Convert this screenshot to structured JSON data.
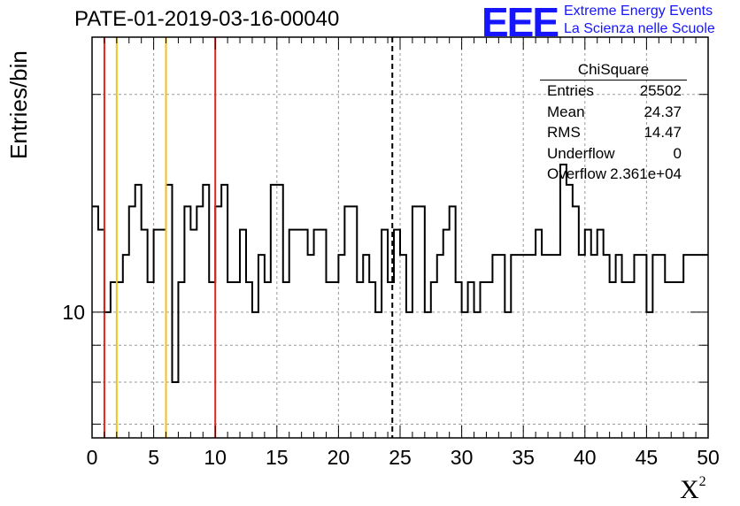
{
  "header": {
    "title": "PATE-01-2019-03-16-00040",
    "logo_text": "EEE",
    "logo_line1": "Extreme Energy Events",
    "logo_line2": "La Scienza nelle Scuole"
  },
  "stats_box": {
    "title": "ChiSquare",
    "rows": [
      {
        "label": "Entries",
        "value": "25502"
      },
      {
        "label": "Mean",
        "value": "24.37"
      },
      {
        "label": "RMS",
        "value": "14.47"
      },
      {
        "label": "Underflow",
        "value": "0"
      },
      {
        "label": "Overflow",
        "value": "2.361e+04"
      }
    ]
  },
  "colors": {
    "red_line": "#e8221a",
    "yellow_line": "#f2c21a",
    "histogram": "#000000",
    "grid": "#9a9a9a",
    "logo": "#1515ff"
  },
  "chart_data": {
    "type": "histogram",
    "title": "PATE-01-2019-03-16-00040",
    "xlabel": "X",
    "xlabel_superscript": "2",
    "ylabel": "Entries/bin",
    "xlim": [
      0,
      50
    ],
    "ylim": [
      6.7,
      24
    ],
    "yscale": "log",
    "grid": true,
    "xticks": [
      0,
      5,
      10,
      15,
      20,
      25,
      30,
      35,
      40,
      45,
      50
    ],
    "yticks": [
      10
    ],
    "bin_width": 0.5,
    "bin_start": 0,
    "values": [
      14,
      13,
      10,
      11,
      11,
      12,
      14,
      15,
      13,
      11,
      13,
      13,
      15,
      8,
      11,
      14,
      13,
      14,
      15,
      11,
      14,
      15,
      11,
      11,
      13,
      11,
      10,
      12,
      11,
      15,
      15,
      11,
      13,
      13,
      13,
      12,
      13,
      13,
      11,
      11,
      12,
      14,
      14,
      11,
      12,
      11,
      10,
      13,
      11,
      13,
      12,
      10,
      14,
      14,
      10,
      11,
      12,
      13,
      14,
      11,
      10,
      11,
      10,
      11,
      11,
      12,
      12,
      10,
      12,
      12,
      12,
      12,
      13,
      12,
      12,
      12,
      16,
      15,
      14,
      12,
      13,
      12,
      13,
      12,
      11,
      12,
      11,
      11,
      12,
      12,
      10,
      12,
      12,
      11,
      11,
      11,
      12,
      12,
      12,
      12
    ],
    "vertical_lines": [
      {
        "x": 1,
        "color": "red",
        "style": "solid"
      },
      {
        "x": 2,
        "color": "yellow",
        "style": "solid"
      },
      {
        "x": 6,
        "color": "yellow",
        "style": "solid"
      },
      {
        "x": 10,
        "color": "red",
        "style": "solid"
      },
      {
        "x": 24.37,
        "color": "black",
        "style": "dashed"
      }
    ]
  }
}
